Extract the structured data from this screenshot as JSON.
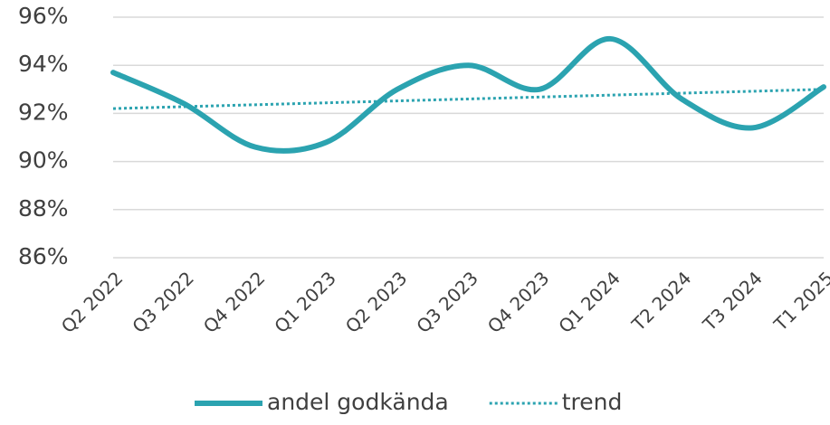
{
  "chart_data": {
    "type": "line",
    "categories": [
      "Q2 2022",
      "Q3 2022",
      "Q4 2022",
      "Q1 2023",
      "Q2 2023",
      "Q3 2023",
      "Q4 2023",
      "Q1 2024",
      "T2 2024",
      "T3 2024",
      "T1 2025"
    ],
    "series": [
      {
        "name": "andel godkända",
        "color": "#2ba3b0",
        "style": "solid",
        "values": [
          93.7,
          92.4,
          90.6,
          90.8,
          93.0,
          94.0,
          93.0,
          95.1,
          92.6,
          91.4,
          93.1
        ]
      },
      {
        "name": "trend",
        "color": "#2ba3b0",
        "style": "dotted",
        "values": [
          92.2,
          92.28,
          92.36,
          92.44,
          92.52,
          92.6,
          92.68,
          92.76,
          92.84,
          92.92,
          93.0
        ]
      }
    ],
    "ylim": [
      86,
      96
    ],
    "yticks": [
      {
        "value": 86,
        "label": "86%"
      },
      {
        "value": 88,
        "label": "88%"
      },
      {
        "value": 90,
        "label": "90%"
      },
      {
        "value": 92,
        "label": "92%"
      },
      {
        "value": 94,
        "label": "94%"
      },
      {
        "value": 96,
        "label": "96%"
      }
    ],
    "grid": true,
    "legend": "bottom"
  }
}
